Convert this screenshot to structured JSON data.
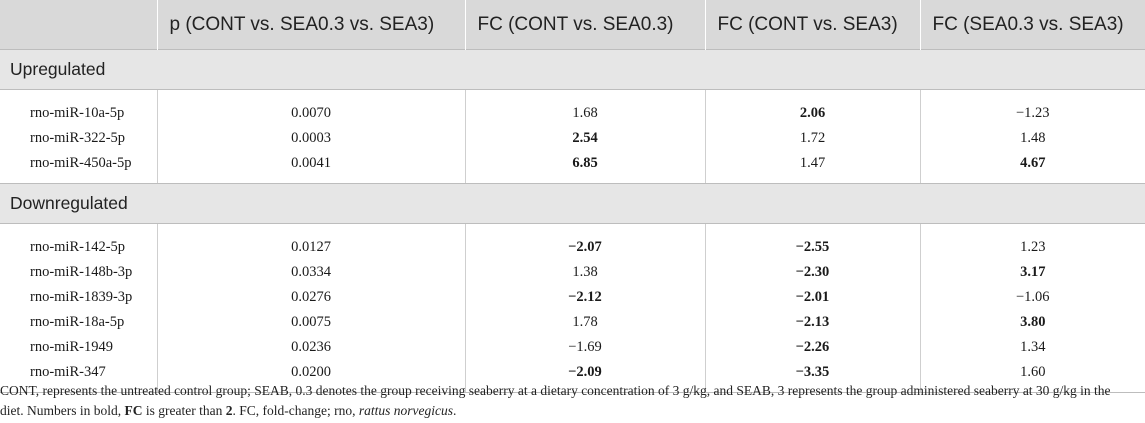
{
  "columns": [
    "",
    "p (CONT vs. SEA0.3 vs. SEA3)",
    "FC (CONT vs. SEA0.3)",
    "FC (CONT vs. SEA3)",
    "FC (SEA0.3 vs. SEA3)"
  ],
  "sections": [
    {
      "title": "Upregulated",
      "rows": [
        {
          "name": "rno-miR-10a-5p",
          "p": "0.0070",
          "fc1": "1.68",
          "fc2": "2.06",
          "fc3": "−1.23",
          "bold": [
            false,
            false,
            true,
            false
          ]
        },
        {
          "name": "rno-miR-322-5p",
          "p": "0.0003",
          "fc1": "2.54",
          "fc2": "1.72",
          "fc3": "1.48",
          "bold": [
            false,
            true,
            false,
            false
          ]
        },
        {
          "name": "rno-miR-450a-5p",
          "p": "0.0041",
          "fc1": "6.85",
          "fc2": "1.47",
          "fc3": "4.67",
          "bold": [
            false,
            true,
            false,
            true
          ]
        }
      ]
    },
    {
      "title": "Downregulated",
      "rows": [
        {
          "name": "rno-miR-142-5p",
          "p": "0.0127",
          "fc1": "−2.07",
          "fc2": "−2.55",
          "fc3": "1.23",
          "bold": [
            false,
            true,
            true,
            false
          ]
        },
        {
          "name": "rno-miR-148b-3p",
          "p": "0.0334",
          "fc1": "1.38",
          "fc2": "−2.30",
          "fc3": "3.17",
          "bold": [
            false,
            false,
            true,
            true
          ]
        },
        {
          "name": "rno-miR-1839-3p",
          "p": "0.0276",
          "fc1": "−2.12",
          "fc2": "−2.01",
          "fc3": "−1.06",
          "bold": [
            false,
            true,
            true,
            false
          ]
        },
        {
          "name": "rno-miR-18a-5p",
          "p": "0.0075",
          "fc1": "1.78",
          "fc2": "−2.13",
          "fc3": "3.80",
          "bold": [
            false,
            false,
            true,
            true
          ]
        },
        {
          "name": "rno-miR-1949",
          "p": "0.0236",
          "fc1": "−1.69",
          "fc2": "−2.26",
          "fc3": "1.34",
          "bold": [
            false,
            false,
            true,
            false
          ]
        },
        {
          "name": "rno-miR-347",
          "p": "0.0200",
          "fc1": "−2.09",
          "fc2": "−3.35",
          "fc3": "1.60",
          "bold": [
            false,
            true,
            true,
            false
          ]
        }
      ]
    }
  ],
  "footnote": {
    "part1": "CONT, represents the untreated control group; SEAB, 0.3 denotes the group receiving seaberry at a dietary concentration of 3 g/kg, and SEAB, 3 represents the group administered seaberry at 30 g/kg in the diet. Numbers in bold, ",
    "bold1": "FC",
    "part2": " is greater than ",
    "bold2": "2",
    "part3": ". FC, fold-change; rno, ",
    "italic": "rattus norvegicus",
    "part4": "."
  }
}
